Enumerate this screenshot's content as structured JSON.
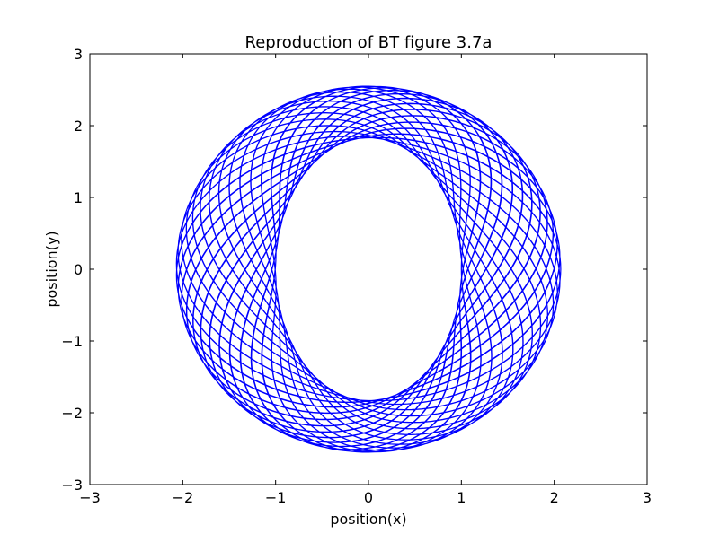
{
  "chart_data": {
    "type": "line",
    "title": "Reproduction of BT figure 3.7a",
    "xlabel": "position(x)",
    "ylabel": "position(y)",
    "xlim": [
      -3,
      3
    ],
    "ylim": [
      -3,
      3
    ],
    "x_ticks": [
      -3,
      -2,
      -1,
      0,
      1,
      2,
      3
    ],
    "y_ticks": [
      -3,
      -2,
      -1,
      0,
      1,
      2,
      3
    ],
    "x_tick_labels": [
      "−3",
      "−2",
      "−1",
      "0",
      "1",
      "2",
      "3"
    ],
    "y_tick_labels": [
      "−3",
      "−2",
      "−1",
      "0",
      "1",
      "2",
      "3"
    ],
    "grid": false,
    "series": [
      {
        "color": "#0000ff",
        "shape": "orbit rosette (annulus)",
        "outer_extent": {
          "x": [
            -2.07,
            2.07
          ],
          "y": [
            -2.55,
            2.55
          ]
        },
        "inner_extent": {
          "x": [
            -1.0,
            1.0
          ],
          "y": [
            -1.83,
            1.83
          ]
        }
      }
    ]
  }
}
